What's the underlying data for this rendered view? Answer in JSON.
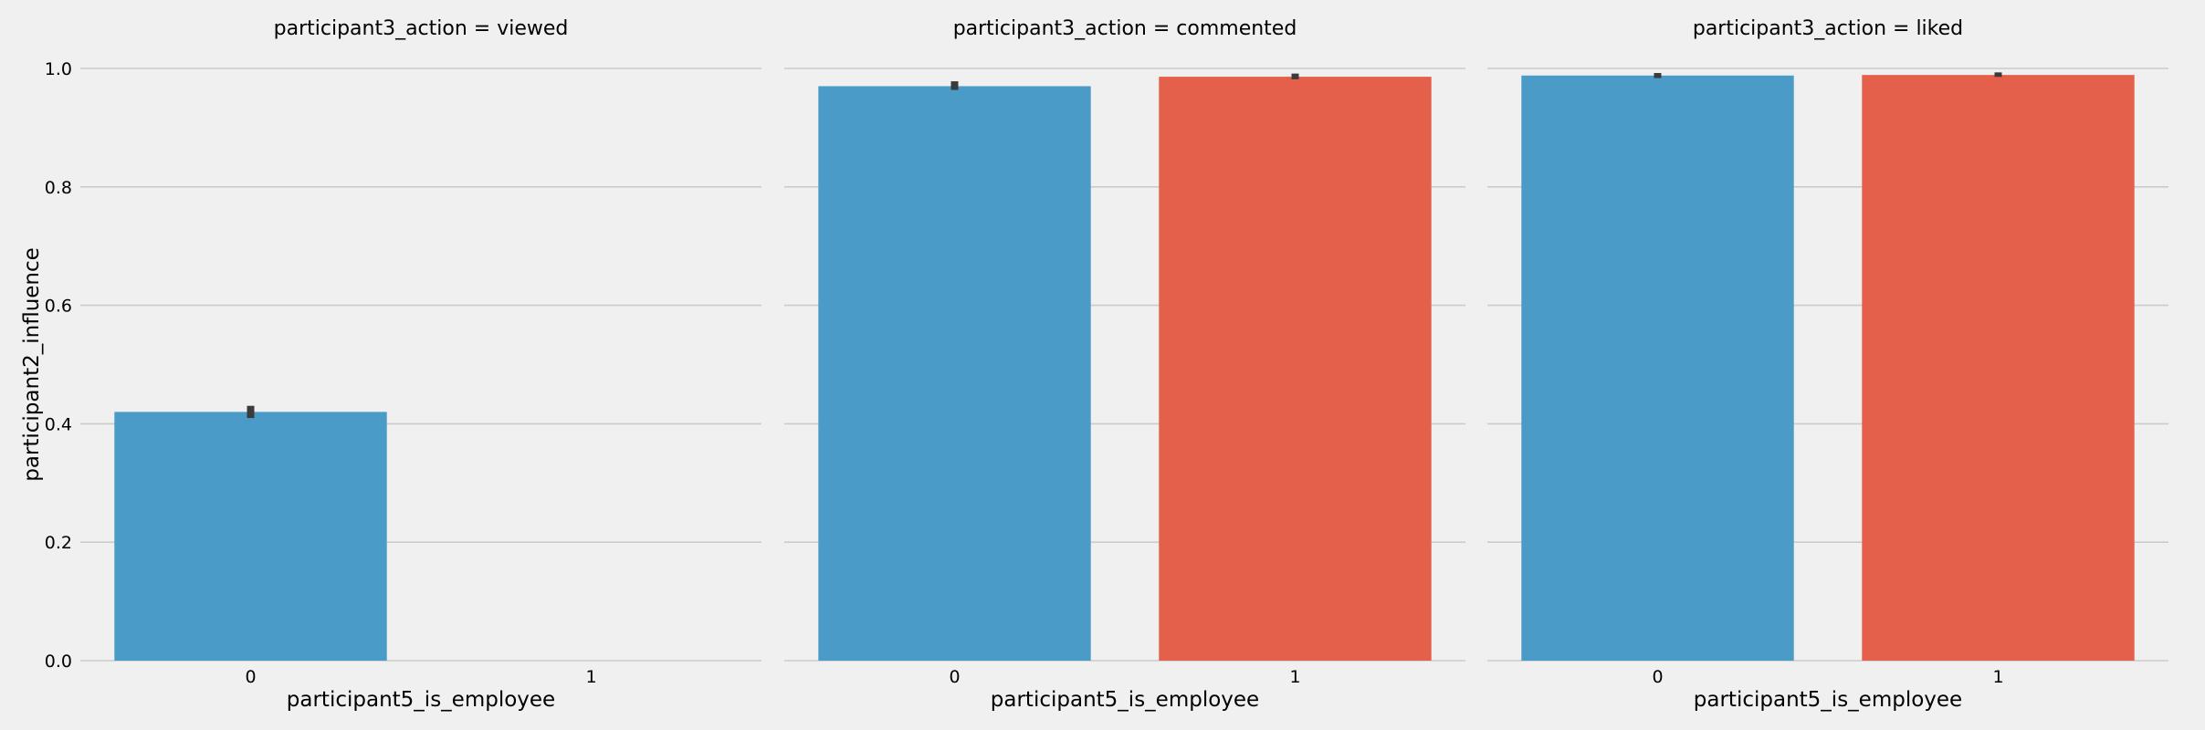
{
  "chart_data": {
    "type": "bar",
    "layout": "facet-grid, 1 row x 3 columns, shared y axis",
    "facet_variable": "participant3_action",
    "xlabel": "participant5_is_employee",
    "ylabel": "participant2_influence",
    "ylim": [
      0.0,
      1.0
    ],
    "yticks": [
      0.0,
      0.2,
      0.4,
      0.6,
      0.8,
      1.0
    ],
    "ytick_labels": [
      "0.0",
      "0.2",
      "0.4",
      "0.6",
      "0.8",
      "1.0"
    ],
    "categories": [
      "0",
      "1"
    ],
    "category_colors": [
      "#4a9bc7",
      "#e5604a"
    ],
    "grid": "horizontal",
    "legend": "none",
    "facets": [
      {
        "title": "participant3_action = viewed",
        "values": [
          0.42,
          null
        ],
        "ci": [
          [
            0.412,
            0.428
          ],
          null
        ]
      },
      {
        "title": "participant3_action = commented",
        "values": [
          0.97,
          0.986
        ],
        "ci": [
          [
            0.966,
            0.976
          ],
          [
            0.984,
            0.989
          ]
        ]
      },
      {
        "title": "participant3_action = liked",
        "values": [
          0.988,
          0.989
        ],
        "ci": [
          [
            0.986,
            0.99
          ],
          [
            0.988,
            0.991
          ]
        ]
      }
    ]
  }
}
